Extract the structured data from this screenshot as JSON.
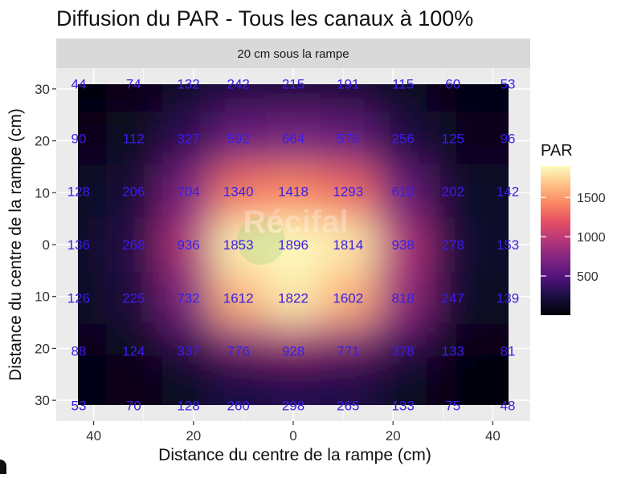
{
  "chart_data": {
    "type": "heatmap",
    "title": "Diffusion du PAR - Tous les canaux à 100%",
    "facet_label": "20 cm sous la rampe",
    "xlabel": "Distance du centre de la rampe (cm)",
    "ylabel": "Distance du centre de la rampe (cm)",
    "x_values": [
      -43,
      -32,
      -21,
      -11,
      0,
      11,
      22,
      32,
      43
    ],
    "y_values": [
      31,
      20.5,
      10.3,
      0,
      -10.3,
      -20.5,
      -31
    ],
    "x_ticks": [
      -40,
      -20,
      0,
      20,
      40
    ],
    "x_tick_labels": [
      "40",
      "20",
      "0",
      "20",
      "40"
    ],
    "y_ticks": [
      30,
      20,
      10,
      0,
      -10,
      -20,
      -30
    ],
    "y_tick_labels": [
      "30",
      "20",
      "10",
      "0",
      "10",
      "20",
      "30"
    ],
    "xlim": [
      -47.5,
      47.5
    ],
    "ylim": [
      -34,
      34
    ],
    "values": [
      [
        44,
        74,
        132,
        242,
        215,
        191,
        115,
        60,
        53
      ],
      [
        90,
        112,
        327,
        592,
        664,
        576,
        256,
        125,
        96
      ],
      [
        128,
        206,
        704,
        1340,
        1418,
        1293,
        610,
        202,
        142
      ],
      [
        136,
        268,
        936,
        1853,
        1896,
        1814,
        938,
        278,
        153
      ],
      [
        126,
        225,
        732,
        1612,
        1822,
        1602,
        818,
        247,
        139
      ],
      [
        88,
        124,
        337,
        776,
        928,
        771,
        378,
        133,
        81
      ],
      [
        53,
        70,
        128,
        260,
        298,
        265,
        133,
        75,
        48
      ]
    ],
    "colorscale": "magma",
    "color_range": [
      0,
      1900
    ],
    "legend": {
      "title": "PAR",
      "placement": "right",
      "ticks": [
        500,
        1000,
        1500
      ],
      "tick_labels": [
        "500",
        "1000",
        "1500"
      ]
    },
    "label_color": "#3a1ee8",
    "panel_background": "#ebebeb",
    "strip_background": "#d9d9d9",
    "grid": true,
    "watermark": "Récifal"
  }
}
